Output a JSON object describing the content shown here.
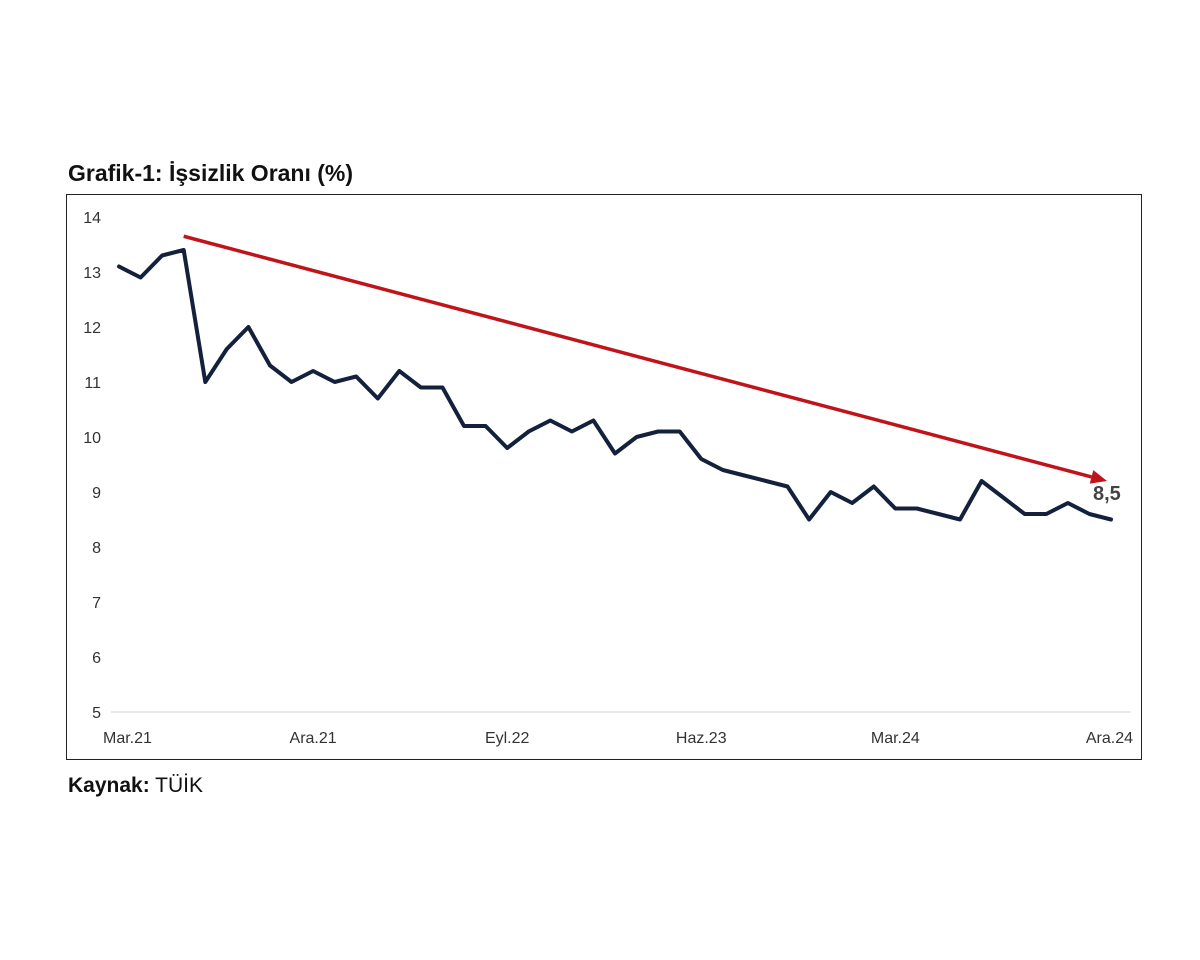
{
  "title": "Grafik-1: İşsizlik Oranı (%)",
  "source": {
    "label": "Kaynak:",
    "value": "TÜİK"
  },
  "colors": {
    "line": "#14213d",
    "trend_arrow": "#c0141b",
    "axis": "#d9d9d9"
  },
  "chart_data": {
    "type": "line",
    "title": "Grafik-1: İşsizlik Oranı (%)",
    "xlabel": "",
    "ylabel": "",
    "ylim": [
      5,
      14
    ],
    "yticks": [
      5,
      6,
      7,
      8,
      9,
      10,
      11,
      12,
      13,
      14
    ],
    "x_tick_labels": [
      "Mar.21",
      "Ara.21",
      "Eyl.22",
      "Haz.23",
      "Mar.24",
      "Ara.24"
    ],
    "x_tick_positions": [
      0,
      9,
      18,
      27,
      36,
      45
    ],
    "grid": false,
    "legend": "none",
    "series": [
      {
        "values": [
          13.1,
          12.9,
          13.3,
          13.4,
          11.0,
          11.6,
          12.0,
          11.3,
          11.0,
          11.2,
          11.0,
          11.1,
          10.7,
          11.2,
          10.9,
          10.9,
          10.2,
          10.2,
          9.8,
          10.1,
          10.3,
          10.1,
          10.3,
          9.7,
          10.0,
          10.1,
          10.1,
          9.6,
          9.4,
          9.3,
          9.2,
          9.1,
          8.5,
          9.0,
          8.8,
          9.1,
          8.7,
          8.7,
          8.6,
          8.5,
          9.2,
          8.9,
          8.6,
          8.6,
          8.8,
          8.6,
          8.5
        ]
      }
    ],
    "annotations": [
      {
        "type": "trend-arrow",
        "from_index": 3,
        "from_value": 13.65,
        "to_index": 46,
        "to_value": 9.2
      },
      {
        "type": "end-label",
        "text": "8,5"
      }
    ]
  }
}
